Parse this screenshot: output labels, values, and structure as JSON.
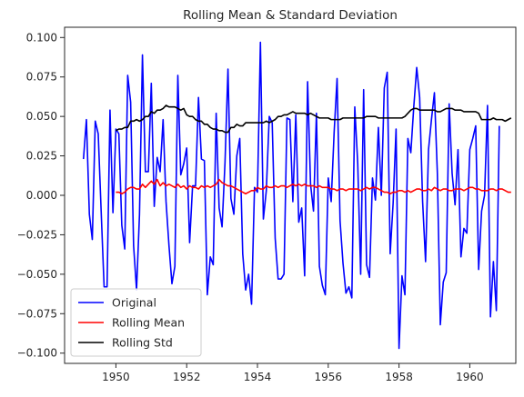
{
  "chart_data": {
    "type": "line",
    "title": "Rolling Mean & Standard Deviation",
    "xlabel": "",
    "ylabel": "",
    "xlim": [
      1948.55,
      1961.3
    ],
    "ylim": [
      -0.1065,
      0.1065
    ],
    "x_start": 1949.0833,
    "x_step": 0.0833333,
    "grid": false,
    "legend_position": "lower-left",
    "xticks": [
      {
        "value": 1950,
        "label": "1950"
      },
      {
        "value": 1952,
        "label": "1952"
      },
      {
        "value": 1954,
        "label": "1954"
      },
      {
        "value": 1956,
        "label": "1956"
      },
      {
        "value": 1958,
        "label": "1958"
      },
      {
        "value": 1960,
        "label": "1960"
      }
    ],
    "yticks": [
      {
        "value": 0.1,
        "label": "0.100"
      },
      {
        "value": 0.075,
        "label": "0.075"
      },
      {
        "value": 0.05,
        "label": "0.050"
      },
      {
        "value": 0.025,
        "label": "0.025"
      },
      {
        "value": 0.0,
        "label": "0.000"
      },
      {
        "value": -0.025,
        "label": "−0.025"
      },
      {
        "value": -0.05,
        "label": "−0.050"
      },
      {
        "value": -0.075,
        "label": "−0.075"
      },
      {
        "value": -0.1,
        "label": "−0.100"
      }
    ],
    "series": [
      {
        "name": "Original",
        "color": "#0000ff",
        "start_index": 0,
        "values": [
          0.023,
          0.048,
          -0.012,
          -0.028,
          0.047,
          0.039,
          -0.01,
          -0.058,
          -0.058,
          0.054,
          -0.011,
          0.042,
          0.039,
          -0.019,
          -0.034,
          0.076,
          0.059,
          -0.032,
          -0.06,
          -0.012,
          0.089,
          0.015,
          0.015,
          0.071,
          -0.007,
          0.024,
          0.015,
          0.048,
          -0.004,
          -0.032,
          -0.056,
          -0.045,
          0.076,
          0.013,
          0.02,
          0.03,
          -0.03,
          0.006,
          0.006,
          0.062,
          0.023,
          0.022,
          -0.063,
          -0.039,
          -0.044,
          0.052,
          -0.008,
          -0.02,
          0.021,
          0.08,
          -0.002,
          -0.012,
          0.025,
          0.036,
          -0.037,
          -0.06,
          -0.05,
          -0.069,
          0.005,
          0.002,
          0.097,
          -0.015,
          0.003,
          0.05,
          0.046,
          -0.027,
          -0.053,
          -0.053,
          -0.05,
          0.049,
          0.048,
          -0.004,
          0.051,
          -0.017,
          -0.008,
          -0.051,
          0.072,
          0.007,
          -0.01,
          0.052,
          -0.045,
          -0.057,
          -0.063,
          0.011,
          -0.004,
          0.04,
          0.074,
          -0.016,
          -0.043,
          -0.062,
          -0.058,
          -0.065,
          0.056,
          0.02,
          -0.05,
          0.067,
          -0.044,
          -0.052,
          0.011,
          -0.003,
          0.043,
          0.0,
          0.068,
          0.078,
          -0.037,
          -0.005,
          0.042,
          -0.097,
          -0.051,
          -0.063,
          0.036,
          0.027,
          0.056,
          0.081,
          0.062,
          -0.004,
          -0.042,
          0.029,
          0.048,
          0.065,
          0.014,
          -0.082,
          -0.055,
          -0.049,
          0.058,
          0.014,
          -0.006,
          0.029,
          -0.039,
          -0.021,
          -0.024,
          0.029,
          0.036,
          0.044,
          -0.047,
          -0.01,
          0.0,
          0.057,
          -0.077,
          -0.042,
          -0.073,
          0.044
        ]
      },
      {
        "name": "Rolling Mean",
        "color": "#ff0000",
        "start_index": 11,
        "values": [
          0.002,
          0.002,
          0.001,
          0.002,
          0.004,
          0.005,
          0.005,
          0.004,
          0.004,
          0.007,
          0.005,
          0.007,
          0.009,
          0.007,
          0.01,
          0.006,
          0.008,
          0.006,
          0.007,
          0.006,
          0.005,
          0.007,
          0.005,
          0.006,
          0.004,
          0.006,
          0.005,
          0.005,
          0.004,
          0.006,
          0.005,
          0.006,
          0.005,
          0.006,
          0.007,
          0.01,
          0.008,
          0.007,
          0.006,
          0.006,
          0.005,
          0.004,
          0.003,
          0.002,
          0.001,
          0.002,
          0.003,
          0.003,
          0.005,
          0.004,
          0.004,
          0.006,
          0.005,
          0.005,
          0.006,
          0.005,
          0.006,
          0.006,
          0.005,
          0.006,
          0.007,
          0.006,
          0.007,
          0.006,
          0.007,
          0.006,
          0.006,
          0.006,
          0.005,
          0.006,
          0.005,
          0.005,
          0.005,
          0.004,
          0.004,
          0.003,
          0.004,
          0.004,
          0.003,
          0.004,
          0.004,
          0.004,
          0.004,
          0.003,
          0.004,
          0.005,
          0.004,
          0.005,
          0.005,
          0.004,
          0.003,
          0.002,
          0.002,
          0.001,
          0.002,
          0.002,
          0.003,
          0.003,
          0.002,
          0.003,
          0.002,
          0.003,
          0.004,
          0.004,
          0.003,
          0.003,
          0.004,
          0.003,
          0.005,
          0.004,
          0.003,
          0.004,
          0.004,
          0.003,
          0.003,
          0.004,
          0.004,
          0.004,
          0.003,
          0.004,
          0.005,
          0.005,
          0.004,
          0.004,
          0.003,
          0.003,
          0.003,
          0.004,
          0.004,
          0.003,
          0.004,
          0.004,
          0.003,
          0.002,
          0.002
        ]
      },
      {
        "name": "Rolling Std",
        "color": "#000000",
        "start_index": 11,
        "values": [
          0.041,
          0.042,
          0.042,
          0.043,
          0.043,
          0.047,
          0.047,
          0.048,
          0.047,
          0.048,
          0.05,
          0.05,
          0.053,
          0.052,
          0.054,
          0.054,
          0.055,
          0.057,
          0.056,
          0.056,
          0.056,
          0.055,
          0.054,
          0.055,
          0.051,
          0.05,
          0.05,
          0.048,
          0.047,
          0.047,
          0.045,
          0.045,
          0.043,
          0.042,
          0.042,
          0.041,
          0.041,
          0.04,
          0.04,
          0.043,
          0.043,
          0.045,
          0.044,
          0.044,
          0.046,
          0.046,
          0.046,
          0.046,
          0.046,
          0.046,
          0.046,
          0.047,
          0.046,
          0.047,
          0.048,
          0.05,
          0.05,
          0.051,
          0.051,
          0.052,
          0.053,
          0.052,
          0.052,
          0.052,
          0.052,
          0.051,
          0.052,
          0.051,
          0.05,
          0.049,
          0.049,
          0.049,
          0.049,
          0.048,
          0.048,
          0.048,
          0.048,
          0.049,
          0.049,
          0.049,
          0.049,
          0.049,
          0.049,
          0.049,
          0.049,
          0.05,
          0.05,
          0.05,
          0.05,
          0.049,
          0.049,
          0.049,
          0.049,
          0.049,
          0.049,
          0.049,
          0.049,
          0.049,
          0.05,
          0.052,
          0.054,
          0.055,
          0.055,
          0.054,
          0.054,
          0.054,
          0.054,
          0.054,
          0.054,
          0.053,
          0.053,
          0.054,
          0.055,
          0.055,
          0.055,
          0.054,
          0.054,
          0.054,
          0.053,
          0.053,
          0.053,
          0.053,
          0.053,
          0.052,
          0.048,
          0.048,
          0.048,
          0.048,
          0.049,
          0.048,
          0.048,
          0.048,
          0.047,
          0.048,
          0.049
        ]
      }
    ]
  }
}
